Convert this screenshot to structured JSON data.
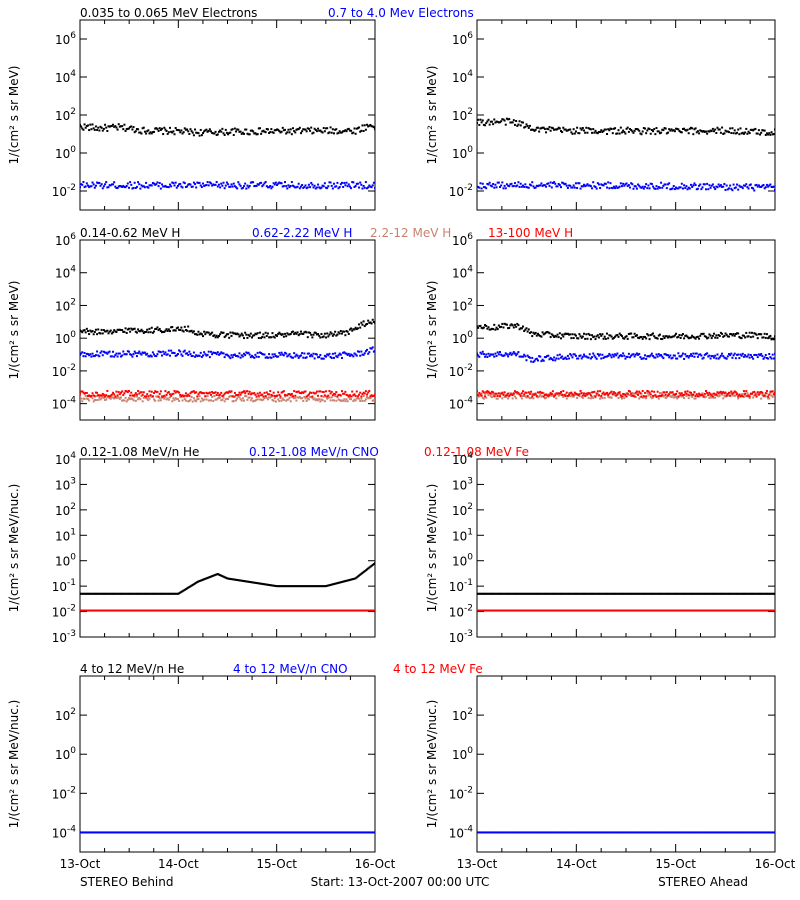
{
  "colors": {
    "black": "#000000",
    "blue": "#0000ff",
    "tan": "#c8826e",
    "red": "#ff0000"
  },
  "labels": {
    "ylabel_flux": "1/(cm² s sr MeV)",
    "ylabel_nuc": "1/(cm² s sr MeV/nuc.)"
  },
  "footer": {
    "left": "STEREO Behind",
    "center": "Start: 13-Oct-2007 00:00 UTC",
    "right": "STEREO Ahead"
  },
  "x_axis": {
    "range_days": [
      0,
      3
    ],
    "ticks": [
      "13-Oct",
      "14-Oct",
      "15-Oct",
      "16-Oct"
    ]
  },
  "chart_data": [
    {
      "id": "electrons",
      "type": "scatter",
      "log_y": true,
      "ylim": [
        0.001,
        10000000
      ],
      "yticks": [
        {
          "exp": "-2",
          "value": 0.01
        },
        {
          "exp": "0",
          "value": 1
        },
        {
          "exp": "2",
          "value": 100
        },
        {
          "exp": "4",
          "value": 10000
        },
        {
          "exp": "6",
          "value": 1000000
        }
      ],
      "legend": [
        {
          "text": "0.035 to 0.065 MeV Electrons",
          "color": "#000000"
        },
        {
          "text": "0.7 to 4.0 Mev Electrons",
          "color": "#0000ff"
        }
      ],
      "panels": [
        {
          "name": "STEREO Behind",
          "series": [
            {
              "name": "0.035 to 0.065 MeV Electrons",
              "color": "#000000",
              "points": [
                [
                  0,
                  25
                ],
                [
                  0.2,
                  20
                ],
                [
                  0.4,
                  22
                ],
                [
                  0.5,
                  20
                ],
                [
                  0.65,
                  15
                ],
                [
                  1,
                  14
                ],
                [
                  1.2,
                  12
                ],
                [
                  1.5,
                  13
                ],
                [
                  2,
                  14
                ],
                [
                  2.5,
                  15
                ],
                [
                  2.8,
                  15
                ],
                [
                  2.95,
                  28
                ],
                [
                  3,
                  25
                ]
              ]
            },
            {
              "name": "0.7 to 4.0 Mev Electrons",
              "color": "#0000ff",
              "points": [
                [
                  0,
                  0.02
                ],
                [
                  1,
                  0.02
                ],
                [
                  2,
                  0.02
                ],
                [
                  3,
                  0.02
                ]
              ]
            }
          ]
        },
        {
          "name": "STEREO Ahead",
          "series": [
            {
              "name": "0.035 to 0.065 MeV Electrons",
              "color": "#000000",
              "points": [
                [
                  0,
                  40
                ],
                [
                  0.3,
                  45
                ],
                [
                  0.4,
                  40
                ],
                [
                  0.5,
                  25
                ],
                [
                  0.7,
                  16
                ],
                [
                  1,
                  15
                ],
                [
                  2,
                  14
                ],
                [
                  2.5,
                  15
                ],
                [
                  3,
                  12
                ]
              ]
            },
            {
              "name": "0.7 to 4.0 Mev Electrons",
              "color": "#0000ff",
              "points": [
                [
                  0,
                  0.02
                ],
                [
                  1,
                  0.02
                ],
                [
                  2,
                  0.018
                ],
                [
                  3,
                  0.015
                ]
              ]
            }
          ]
        }
      ]
    },
    {
      "id": "protons",
      "type": "scatter",
      "log_y": true,
      "ylim": [
        1e-05,
        1000000
      ],
      "yticks": [
        {
          "exp": "-4",
          "value": 0.0001
        },
        {
          "exp": "-2",
          "value": 0.01
        },
        {
          "exp": "0",
          "value": 1
        },
        {
          "exp": "2",
          "value": 100
        },
        {
          "exp": "4",
          "value": 10000
        },
        {
          "exp": "6",
          "value": 1000000
        }
      ],
      "legend": [
        {
          "text": "0.14-0.62 MeV H",
          "color": "#000000"
        },
        {
          "text": "0.62-2.22 MeV H",
          "color": "#0000ff"
        },
        {
          "text": "2.2-12 MeV H",
          "color": "#c8826e"
        },
        {
          "text": "13-100 MeV H",
          "color": "#ff0000"
        }
      ],
      "panels": [
        {
          "name": "STEREO Behind",
          "series": [
            {
              "name": "0.14-0.62 MeV H",
              "color": "#000000",
              "points": [
                [
                  0,
                  2.5
                ],
                [
                  0.2,
                  2.5
                ],
                [
                  0.3,
                  2
                ],
                [
                  0.4,
                  3
                ],
                [
                  0.5,
                  3
                ],
                [
                  0.7,
                  3
                ],
                [
                  0.9,
                  3.5
                ],
                [
                  1.1,
                  3.5
                ],
                [
                  1.2,
                  2
                ],
                [
                  1.5,
                  1.5
                ],
                [
                  2,
                  1.5
                ],
                [
                  2.2,
                  1.8
                ],
                [
                  2.5,
                  1.5
                ],
                [
                  2.7,
                  2
                ],
                [
                  2.8,
                  4
                ],
                [
                  2.9,
                  8
                ],
                [
                  3,
                  10
                ]
              ]
            },
            {
              "name": "0.62-2.22 MeV H",
              "color": "#0000ff",
              "points": [
                [
                  0,
                  0.1
                ],
                [
                  1,
                  0.12
                ],
                [
                  1.5,
                  0.09
                ],
                [
                  2,
                  0.09
                ],
                [
                  2.5,
                  0.08
                ],
                [
                  2.8,
                  0.1
                ],
                [
                  3,
                  0.2
                ]
              ]
            },
            {
              "name": "2.2-12 MeV H",
              "color": "#c8826e",
              "points": [
                [
                  0,
                  0.0002
                ],
                [
                  1,
                  0.0002
                ],
                [
                  2,
                  0.0002
                ],
                [
                  3,
                  0.0002
                ]
              ]
            },
            {
              "name": "13-100 MeV H",
              "color": "#ff0000",
              "points": [
                [
                  0,
                  0.0004
                ],
                [
                  1,
                  0.0004
                ],
                [
                  2,
                  0.0004
                ],
                [
                  3,
                  0.0004
                ]
              ]
            }
          ]
        },
        {
          "name": "STEREO Ahead",
          "series": [
            {
              "name": "0.14-0.62 MeV H",
              "color": "#000000",
              "points": [
                [
                  0,
                  5
                ],
                [
                  0.2,
                  4.5
                ],
                [
                  0.35,
                  6
                ],
                [
                  0.45,
                  5
                ],
                [
                  0.55,
                  1.8
                ],
                [
                  1,
                  1.3
                ],
                [
                  2,
                  1.3
                ],
                [
                  2.5,
                  1.5
                ],
                [
                  2.8,
                  1.5
                ],
                [
                  3,
                  1.2
                ]
              ]
            },
            {
              "name": "0.62-2.22 MeV H",
              "color": "#0000ff",
              "points": [
                [
                  0,
                  0.1
                ],
                [
                  0.4,
                  0.11
                ],
                [
                  0.55,
                  0.05
                ],
                [
                  1,
                  0.08
                ],
                [
                  2,
                  0.08
                ],
                [
                  3,
                  0.08
                ]
              ]
            },
            {
              "name": "2.2-12 MeV H",
              "color": "#c8826e",
              "points": [
                [
                  0,
                  0.0003
                ],
                [
                  1,
                  0.0003
                ],
                [
                  2,
                  0.0003
                ],
                [
                  3,
                  0.0003
                ]
              ]
            },
            {
              "name": "13-100 MeV H",
              "color": "#ff0000",
              "points": [
                [
                  0,
                  0.0004
                ],
                [
                  1,
                  0.0004
                ],
                [
                  2,
                  0.0004
                ],
                [
                  3,
                  0.0004
                ]
              ]
            }
          ]
        }
      ]
    },
    {
      "id": "heavy_low",
      "type": "scatter",
      "log_y": true,
      "ylim": [
        0.001,
        10000
      ],
      "yticks": [
        {
          "mantissa": "10",
          "exp": "-3",
          "value": 0.001
        },
        {
          "mantissa": "10",
          "exp": "-2",
          "value": 0.01
        },
        {
          "mantissa": "10",
          "exp": "-1",
          "value": 0.1
        },
        {
          "mantissa": "10",
          "exp": "0",
          "value": 1
        },
        {
          "mantissa": "10",
          "exp": "1",
          "value": 10
        },
        {
          "mantissa": "10",
          "exp": "2",
          "value": 100
        },
        {
          "mantissa": "10",
          "exp": "3",
          "value": 1000
        },
        {
          "mantissa": "10",
          "exp": "4",
          "value": 10000
        }
      ],
      "legend": [
        {
          "text": "0.12-1.08 MeV/n He",
          "color": "#000000"
        },
        {
          "text": "0.12-1.08 MeV/n CNO",
          "color": "#0000ff"
        },
        {
          "text": "0.12-1.08 MeV Fe",
          "color": "#ff0000"
        }
      ],
      "panels": [
        {
          "name": "STEREO Behind",
          "series": [
            {
              "name": "0.12-1.08 MeV/n He",
              "color": "#000000",
              "points": [
                [
                  0,
                  0.05
                ],
                [
                  1,
                  0.05
                ],
                [
                  1.2,
                  0.15
                ],
                [
                  1.4,
                  0.3
                ],
                [
                  1.5,
                  0.2
                ],
                [
                  2,
                  0.1
                ],
                [
                  2.5,
                  0.1
                ],
                [
                  2.8,
                  0.2
                ],
                [
                  3,
                  0.8
                ]
              ]
            },
            {
              "name": "0.12-1.08 MeV/n CNO",
              "color": "#0000ff",
              "points": [
                [
                  0,
                  0.011
                ],
                [
                  1,
                  0.011
                ],
                [
                  2,
                  0.011
                ],
                [
                  3,
                  0.011
                ]
              ]
            },
            {
              "name": "0.12-1.08 MeV Fe",
              "color": "#ff0000",
              "points": [
                [
                  0,
                  0.011
                ],
                [
                  1,
                  0.011
                ],
                [
                  2,
                  0.011
                ],
                [
                  3,
                  0.011
                ]
              ]
            }
          ]
        },
        {
          "name": "STEREO Ahead",
          "series": [
            {
              "name": "0.12-1.08 MeV/n He",
              "color": "#000000",
              "points": [
                [
                  0,
                  0.05
                ],
                [
                  1,
                  0.05
                ],
                [
                  2,
                  0.05
                ],
                [
                  3,
                  0.05
                ]
              ]
            },
            {
              "name": "0.12-1.08 MeV/n CNO",
              "color": "#0000ff",
              "points": [
                [
                  0,
                  0.011
                ],
                [
                  1,
                  0.011
                ],
                [
                  2,
                  0.011
                ],
                [
                  3,
                  0.011
                ]
              ]
            },
            {
              "name": "0.12-1.08 MeV Fe",
              "color": "#ff0000",
              "points": [
                [
                  0,
                  0.011
                ],
                [
                  1,
                  0.011
                ],
                [
                  2,
                  0.011
                ],
                [
                  3,
                  0.011
                ]
              ]
            }
          ]
        }
      ]
    },
    {
      "id": "heavy_high",
      "type": "scatter",
      "log_y": true,
      "ylim": [
        1e-05,
        10000
      ],
      "yticks": [
        {
          "exp": "-4",
          "value": 0.0001
        },
        {
          "exp": "-2",
          "value": 0.01
        },
        {
          "exp": "0",
          "value": 1
        },
        {
          "exp": "2",
          "value": 100
        }
      ],
      "legend": [
        {
          "text": "4 to 12 MeV/n He",
          "color": "#000000"
        },
        {
          "text": "4 to 12 MeV/n CNO",
          "color": "#0000ff"
        },
        {
          "text": "4 to 12 MeV Fe",
          "color": "#ff0000"
        }
      ],
      "panels": [
        {
          "name": "STEREO Behind",
          "series": [
            {
              "name": "4 to 12 MeV/n CNO",
              "color": "#0000ff",
              "points": [
                [
                  0,
                  0.0001
                ],
                [
                  1,
                  0.0001
                ],
                [
                  2,
                  0.0001
                ],
                [
                  3,
                  0.0001
                ]
              ]
            }
          ]
        },
        {
          "name": "STEREO Ahead",
          "series": [
            {
              "name": "4 to 12 MeV/n CNO",
              "color": "#0000ff",
              "points": [
                [
                  0,
                  0.0001
                ],
                [
                  1,
                  0.0001
                ],
                [
                  2,
                  0.0001
                ],
                [
                  3,
                  0.0001
                ]
              ]
            }
          ]
        }
      ]
    }
  ]
}
